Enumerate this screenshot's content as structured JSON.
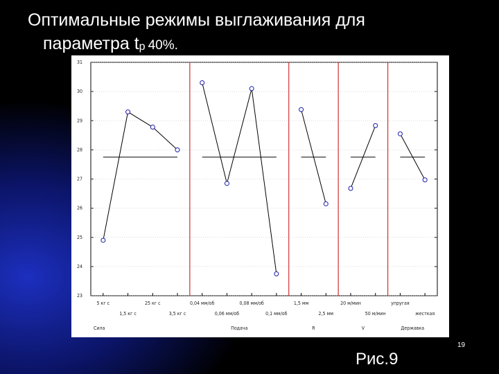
{
  "slide_number": "19",
  "figure_label": "Рис.9",
  "chart_data": {
    "type": "line",
    "title": "Оптимальные режимы выглаживания для параметра t",
    "title_subscript": "р",
    "title_suffix": "40%.",
    "ylim": [
      23,
      31
    ],
    "yticks": [
      23,
      24,
      25,
      26,
      27,
      28,
      29,
      30,
      31
    ],
    "grid": true,
    "line_color": "#000000",
    "marker_color": "#1a1aa6",
    "separator_color": "#d03030",
    "reference_line": 27.75,
    "groups": [
      {
        "name": "Сила",
        "categories": [
          "5 кг   с",
          "1,5 кг   с",
          "25 кг   с",
          "3,5 кг   с"
        ],
        "values": [
          24.9,
          29.3,
          28.78,
          28.0
        ]
      },
      {
        "name": "Подача",
        "categories": [
          "0,04 мм/об",
          "0,06 мм/об",
          "0,08 мм/об",
          "0,1 мм/об"
        ],
        "values": [
          30.3,
          26.85,
          30.1,
          23.75
        ]
      },
      {
        "name": "R",
        "categories": [
          "1,5 мм",
          "2,5 мм"
        ],
        "values": [
          29.38,
          26.15
        ]
      },
      {
        "name": "V",
        "categories": [
          "20 м/мин",
          "50 м/мин"
        ],
        "values": [
          26.68,
          28.83
        ]
      },
      {
        "name": "Державка",
        "categories": [
          "упругая",
          "жесткая"
        ],
        "values": [
          28.55,
          26.97
        ]
      }
    ]
  }
}
